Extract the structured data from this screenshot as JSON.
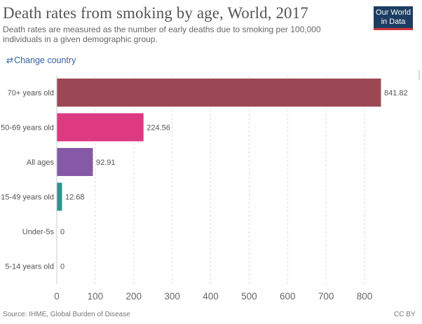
{
  "header": {
    "title": "Death rates from smoking by age, World, 2017",
    "subtitle": "Death rates are measured as the number of early deaths due to smoking per 100,000 individuals in a given demographic group."
  },
  "logo": {
    "line1": "Our World",
    "line2": "in Data"
  },
  "controls": {
    "change_country_label": "Change country",
    "change_country_icon": "swap-arrows-icon"
  },
  "footer": {
    "source": "Source: IHME, Global Burden of Disease",
    "license": "CC BY"
  },
  "colors": {
    "70+ years old": "#9b4854",
    "50-69 years old": "#dd3a82",
    "All ages": "#8559a6",
    "15-49 years old": "#2a948c",
    "Under-5s": "#3b6bb0",
    "5-14 years old": "#3b6bb0",
    "link": "#3360a9",
    "logo_bg": "#1d3d63",
    "logo_accent": "#d0353c"
  },
  "chart_data": {
    "type": "bar",
    "orientation": "horizontal",
    "title": "Death rates from smoking by age, World, 2017",
    "categories": [
      "70+ years old",
      "50-69 years old",
      "All ages",
      "15-49 years old",
      "Under-5s",
      "5-14 years old"
    ],
    "values": [
      841.82,
      224.56,
      92.91,
      12.68,
      0,
      0
    ],
    "value_labels": [
      "841.82",
      "224.56",
      "92.91",
      "12.68",
      "0",
      "0"
    ],
    "xlim": [
      0,
      800
    ],
    "xticks": [
      0,
      100,
      200,
      300,
      400,
      500,
      600,
      700,
      800
    ],
    "grid": "vertical dashed",
    "legend": "none"
  }
}
